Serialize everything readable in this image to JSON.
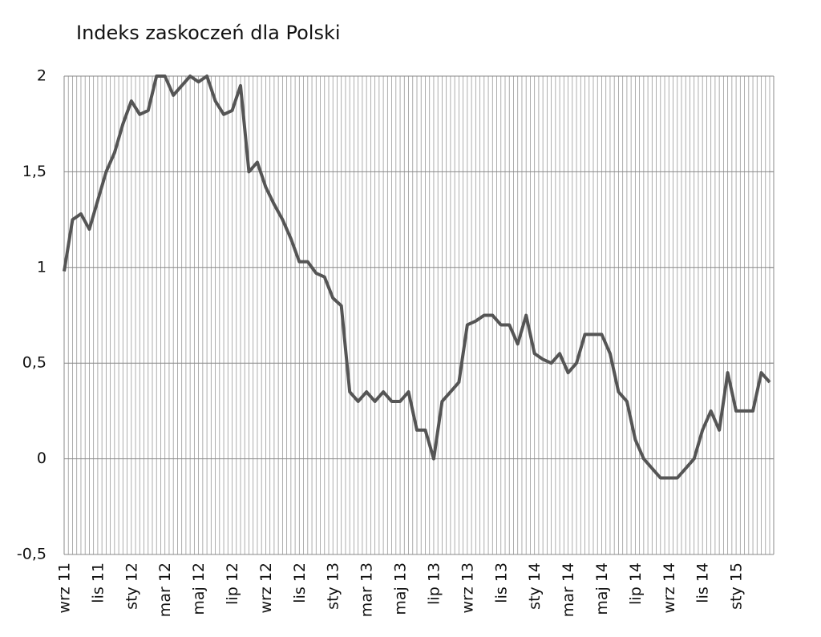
{
  "chart_data": {
    "type": "line",
    "title": "Indeks zaskoczeń dla Polski",
    "categories": [
      "wrz 11",
      null,
      null,
      null,
      "lis 11",
      null,
      null,
      null,
      "sty 12",
      null,
      null,
      null,
      "mar 12",
      null,
      null,
      null,
      "maj 12",
      null,
      null,
      null,
      "lip 12",
      null,
      null,
      null,
      "wrz 12",
      null,
      null,
      null,
      "lis 12",
      null,
      null,
      null,
      "sty 13",
      null,
      null,
      null,
      "mar 13",
      null,
      null,
      null,
      "maj 13",
      null,
      null,
      null,
      "lip 13",
      null,
      null,
      null,
      "wrz 13",
      null,
      null,
      null,
      "lis 13",
      null,
      null,
      null,
      "sty 14",
      null,
      null,
      null,
      "mar 14",
      null,
      null,
      null,
      "maj 14",
      null,
      null,
      null,
      "lip 14",
      null,
      null,
      null,
      "wrz 14",
      null,
      null,
      null,
      "lis 14",
      null,
      null,
      null,
      "sty 15",
      null,
      null,
      null,
      null
    ],
    "series": [
      {
        "color": "#555555",
        "values": [
          0.98,
          1.25,
          1.28,
          1.2,
          1.35,
          1.5,
          1.6,
          1.75,
          1.87,
          1.8,
          1.82,
          2.0,
          2.0,
          1.9,
          1.95,
          2.0,
          1.97,
          2.0,
          1.87,
          1.8,
          1.82,
          1.95,
          1.5,
          1.55,
          1.42,
          1.33,
          1.25,
          1.15,
          1.03,
          1.03,
          0.97,
          0.95,
          0.84,
          0.8,
          0.35,
          0.3,
          0.35,
          0.3,
          0.35,
          0.3,
          0.3,
          0.35,
          0.15,
          0.15,
          0.0,
          0.3,
          0.35,
          0.4,
          0.7,
          0.72,
          0.75,
          0.75,
          0.7,
          0.7,
          0.6,
          0.75,
          0.55,
          0.52,
          0.5,
          0.55,
          0.45,
          0.5,
          0.65,
          0.65,
          0.65,
          0.55,
          0.35,
          0.3,
          0.1,
          0.0,
          -0.05,
          -0.1,
          -0.1,
          -0.1,
          -0.05,
          0.0,
          0.15,
          0.25,
          0.15,
          0.45,
          0.25,
          0.25,
          0.25,
          0.45,
          0.4
        ]
      }
    ],
    "ylim": [
      -0.5,
      2
    ],
    "yticks": [
      {
        "value": -0.5,
        "label": "-0,5"
      },
      0,
      {
        "value": 0.5,
        "label": "0,5"
      },
      1,
      {
        "value": 1.5,
        "label": "1,5"
      },
      2
    ],
    "grid": true
  }
}
